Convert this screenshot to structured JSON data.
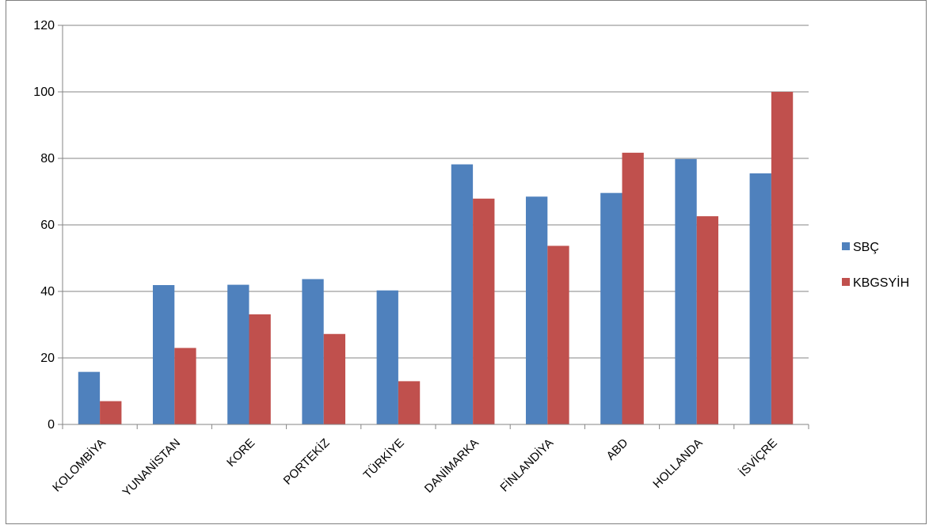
{
  "chart_data": {
    "type": "bar",
    "categories": [
      "KOLOMBİYA",
      "YUNANİSTAN",
      "KORE",
      "PORTEKİZ",
      "TÜRKİYE",
      "DANİMARKA",
      "FİNLANDİYA",
      "ABD",
      "HOLLANDA",
      "İSVİÇRE"
    ],
    "series": [
      {
        "name": "SBÇ",
        "color": "#4F81BD",
        "values": [
          15.8,
          41.9,
          42.0,
          43.7,
          40.3,
          78.2,
          68.5,
          69.6,
          79.8,
          75.5
        ]
      },
      {
        "name": "KBGSYİH",
        "color": "#C0504D",
        "values": [
          7.0,
          23.0,
          33.1,
          27.2,
          13.0,
          67.9,
          53.7,
          81.7,
          62.6,
          100.0
        ]
      }
    ],
    "yticks": [
      0,
      20,
      40,
      60,
      80,
      100,
      120
    ],
    "ylim": [
      0,
      120
    ],
    "grid": true,
    "legend_position": "right"
  }
}
